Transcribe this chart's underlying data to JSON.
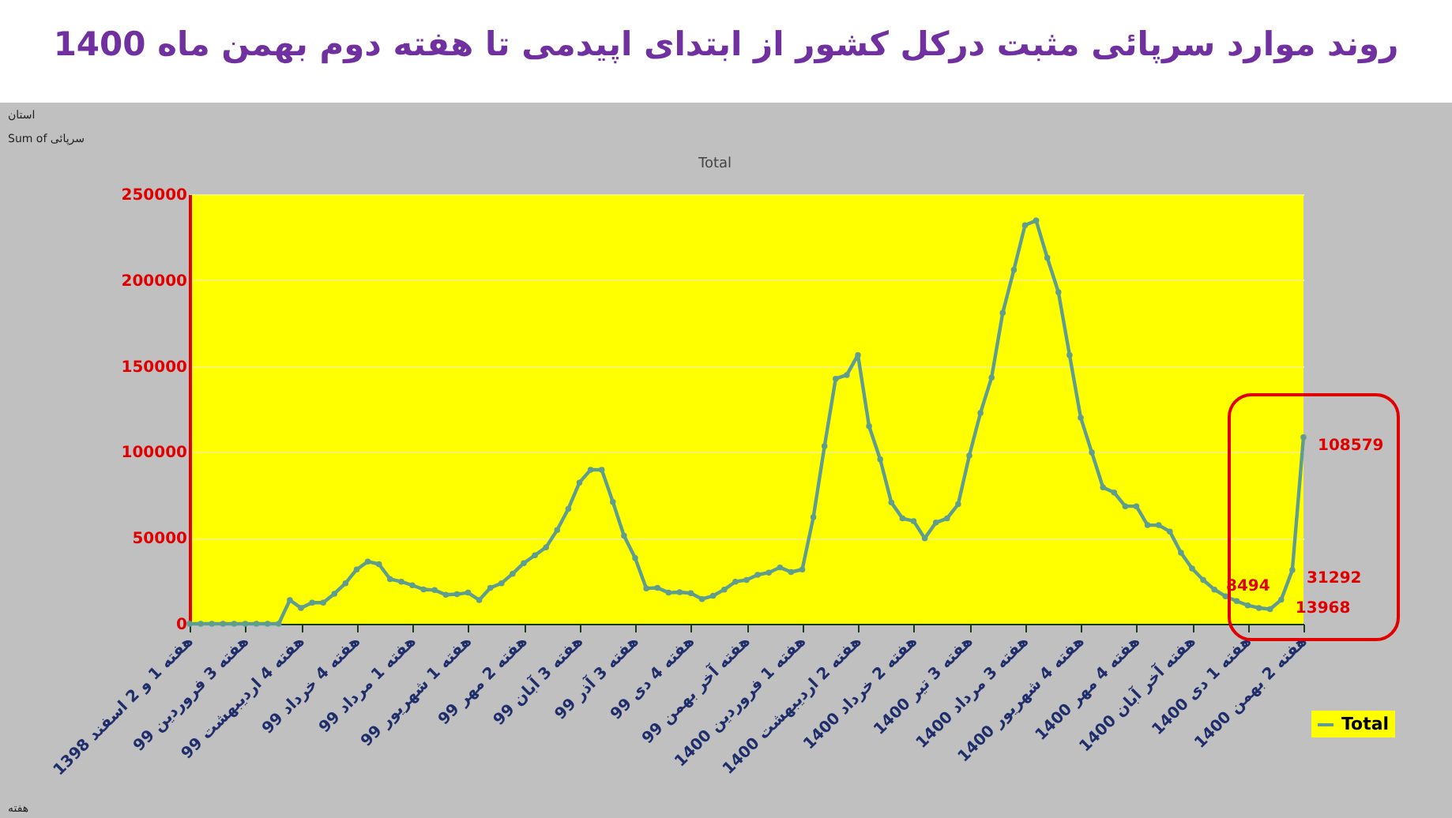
{
  "chart_data": {
    "type": "line",
    "title": "روند موارد سرپائی مثبت  درکل کشور از ابتدای اپیدمی تا هفته دوم بهمن ماه 1400",
    "subtitle": "Total",
    "categories": [
      "هفته 1 و 2 اسفند 1398",
      null,
      null,
      null,
      null,
      "هفته 3 فروردین 99",
      null,
      null,
      null,
      null,
      "هفته 4 اردیبهشت 99",
      null,
      null,
      null,
      null,
      "هفته 4 خرداد 99",
      null,
      null,
      null,
      null,
      "هفته 1 مرداد 99",
      null,
      null,
      null,
      null,
      "هفته 1 شهریور 99",
      null,
      null,
      null,
      null,
      "هفته 2 مهر 99",
      null,
      null,
      null,
      null,
      "هفته 3 آبان 99",
      null,
      null,
      null,
      null,
      "هفته 3 آذر 99",
      null,
      null,
      null,
      null,
      "هفته 4 دی 99",
      null,
      null,
      null,
      null,
      "هفته آخر بهمن 99",
      null,
      null,
      null,
      null,
      "هفته 1 فروردین 1400",
      null,
      null,
      null,
      null,
      "هفته 2 اردیبهشت 1400",
      null,
      null,
      null,
      null,
      "هفته 2 خرداد 1400",
      null,
      null,
      null,
      null,
      "هفته 3 تیر 1400",
      null,
      null,
      null,
      null,
      "هفته 3 مرداد 1400",
      null,
      null,
      null,
      null,
      "هفته 4 شهریور 1400",
      null,
      null,
      null,
      null,
      "هفته 4 مهر 1400",
      null,
      null,
      null,
      null,
      "هفته آخر آبان 1400",
      null,
      null,
      null,
      null,
      "هفته 1 دی 1400",
      null,
      null,
      null,
      null,
      "هفته 2 بهمن 1400"
    ],
    "series": [
      {
        "name": "Total",
        "color": "#5f9e8f",
        "values": [
          0,
          0,
          0,
          0,
          0,
          0,
          0,
          0,
          0,
          13800,
          9200,
          12300,
          12300,
          17500,
          23600,
          31600,
          36200,
          34700,
          26000,
          24500,
          22400,
          20000,
          19600,
          16900,
          17200,
          18100,
          13800,
          20900,
          23600,
          29100,
          35300,
          39900,
          44500,
          54600,
          66900,
          82200,
          89600,
          89600,
          70900,
          51200,
          38300,
          20600,
          20900,
          18100,
          18400,
          17800,
          14400,
          16300,
          19900,
          24500,
          25500,
          28500,
          29800,
          32800,
          30100,
          31600,
          62000,
          103400,
          142600,
          144800,
          156400,
          115000,
          95700,
          70600,
          61300,
          59800,
          49700,
          58900,
          61300,
          69600,
          97900,
          122700,
          143300,
          181000,
          206000,
          232000,
          234700,
          213000,
          193000,
          156400,
          120000,
          99700,
          79400,
          76400,
          68400,
          68400,
          57400,
          57400,
          53700,
          41400,
          32200,
          25500,
          19900,
          16000,
          13200,
          10700,
          9200,
          8494,
          13968,
          31292,
          108579
        ],
        "value_labels": [
          null,
          null,
          null,
          null,
          null,
          null,
          null,
          null,
          null,
          null,
          null,
          null,
          null,
          null,
          null,
          null,
          null,
          null,
          null,
          null,
          null,
          null,
          null,
          null,
          null,
          null,
          null,
          null,
          null,
          null,
          null,
          null,
          null,
          null,
          null,
          null,
          null,
          null,
          null,
          null,
          null,
          null,
          null,
          null,
          null,
          null,
          null,
          null,
          null,
          null,
          null,
          null,
          null,
          null,
          null,
          null,
          null,
          null,
          null,
          null,
          null,
          null,
          null,
          null,
          null,
          null,
          null,
          null,
          null,
          null,
          null,
          null,
          null,
          null,
          null,
          null,
          null,
          null,
          null,
          null,
          null,
          null,
          null,
          null,
          null,
          null,
          null,
          null,
          null,
          null,
          null,
          null,
          null,
          null,
          null,
          null,
          null,
          "8494",
          "13968",
          "31292",
          "108579"
        ]
      }
    ],
    "ylim": [
      0,
      250000
    ],
    "yticks": [
      0,
      50000,
      100000,
      150000,
      200000,
      250000
    ],
    "grid": "y",
    "legend": "bottom right",
    "marker": "circle",
    "line_style": "solid",
    "annotations": [
      "استان",
      "Sum of سرپائی",
      "هفته"
    ]
  }
}
